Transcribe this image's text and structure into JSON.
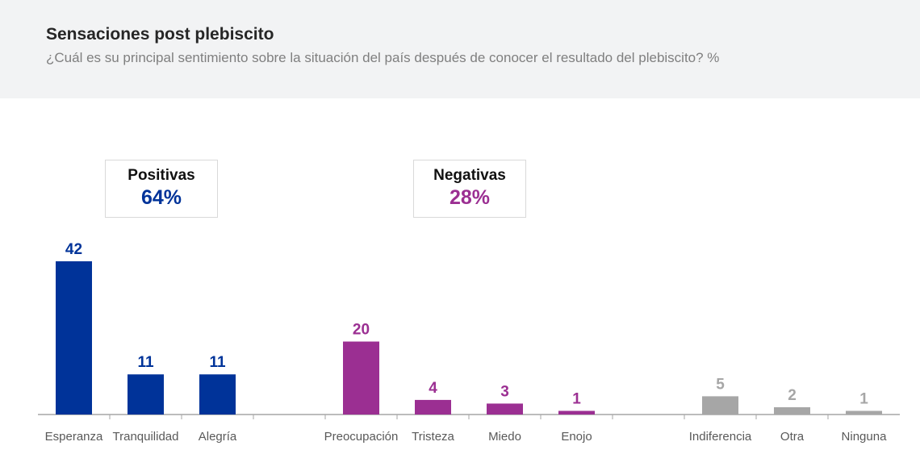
{
  "header": {
    "title": "Sensaciones post plebiscito",
    "subtitle": "¿Cuál es su principal sentimiento sobre la situación del país después de conocer el resultado del plebiscito? %"
  },
  "groups": [
    {
      "name": "Positivas",
      "value": "64%",
      "color": "#003399"
    },
    {
      "name": "Negativas",
      "value": "28%",
      "color": "#9b2f92"
    }
  ],
  "colors": {
    "positive": "#003399",
    "negative": "#9b2f92",
    "neutral": "#a6a6a6",
    "axis": "#a6a6a6",
    "label": "#595959"
  },
  "chart_data": {
    "type": "bar",
    "categories": [
      "Esperanza",
      "Tranquilidad",
      "Alegría",
      "",
      "Preocupación",
      "Tristeza",
      "Miedo",
      "Enojo",
      "",
      "Indiferencia",
      "Otra",
      "Ninguna"
    ],
    "values": [
      42,
      11,
      11,
      null,
      20,
      4,
      3,
      1,
      null,
      5,
      2,
      1
    ],
    "groups": [
      "positive",
      "positive",
      "positive",
      null,
      "negative",
      "negative",
      "negative",
      "negative",
      null,
      "neutral",
      "neutral",
      "neutral"
    ],
    "title": "Sensaciones post plebiscito",
    "xlabel": "",
    "ylabel": "",
    "ylim": [
      0,
      42
    ],
    "grid": false,
    "legend": "none"
  }
}
